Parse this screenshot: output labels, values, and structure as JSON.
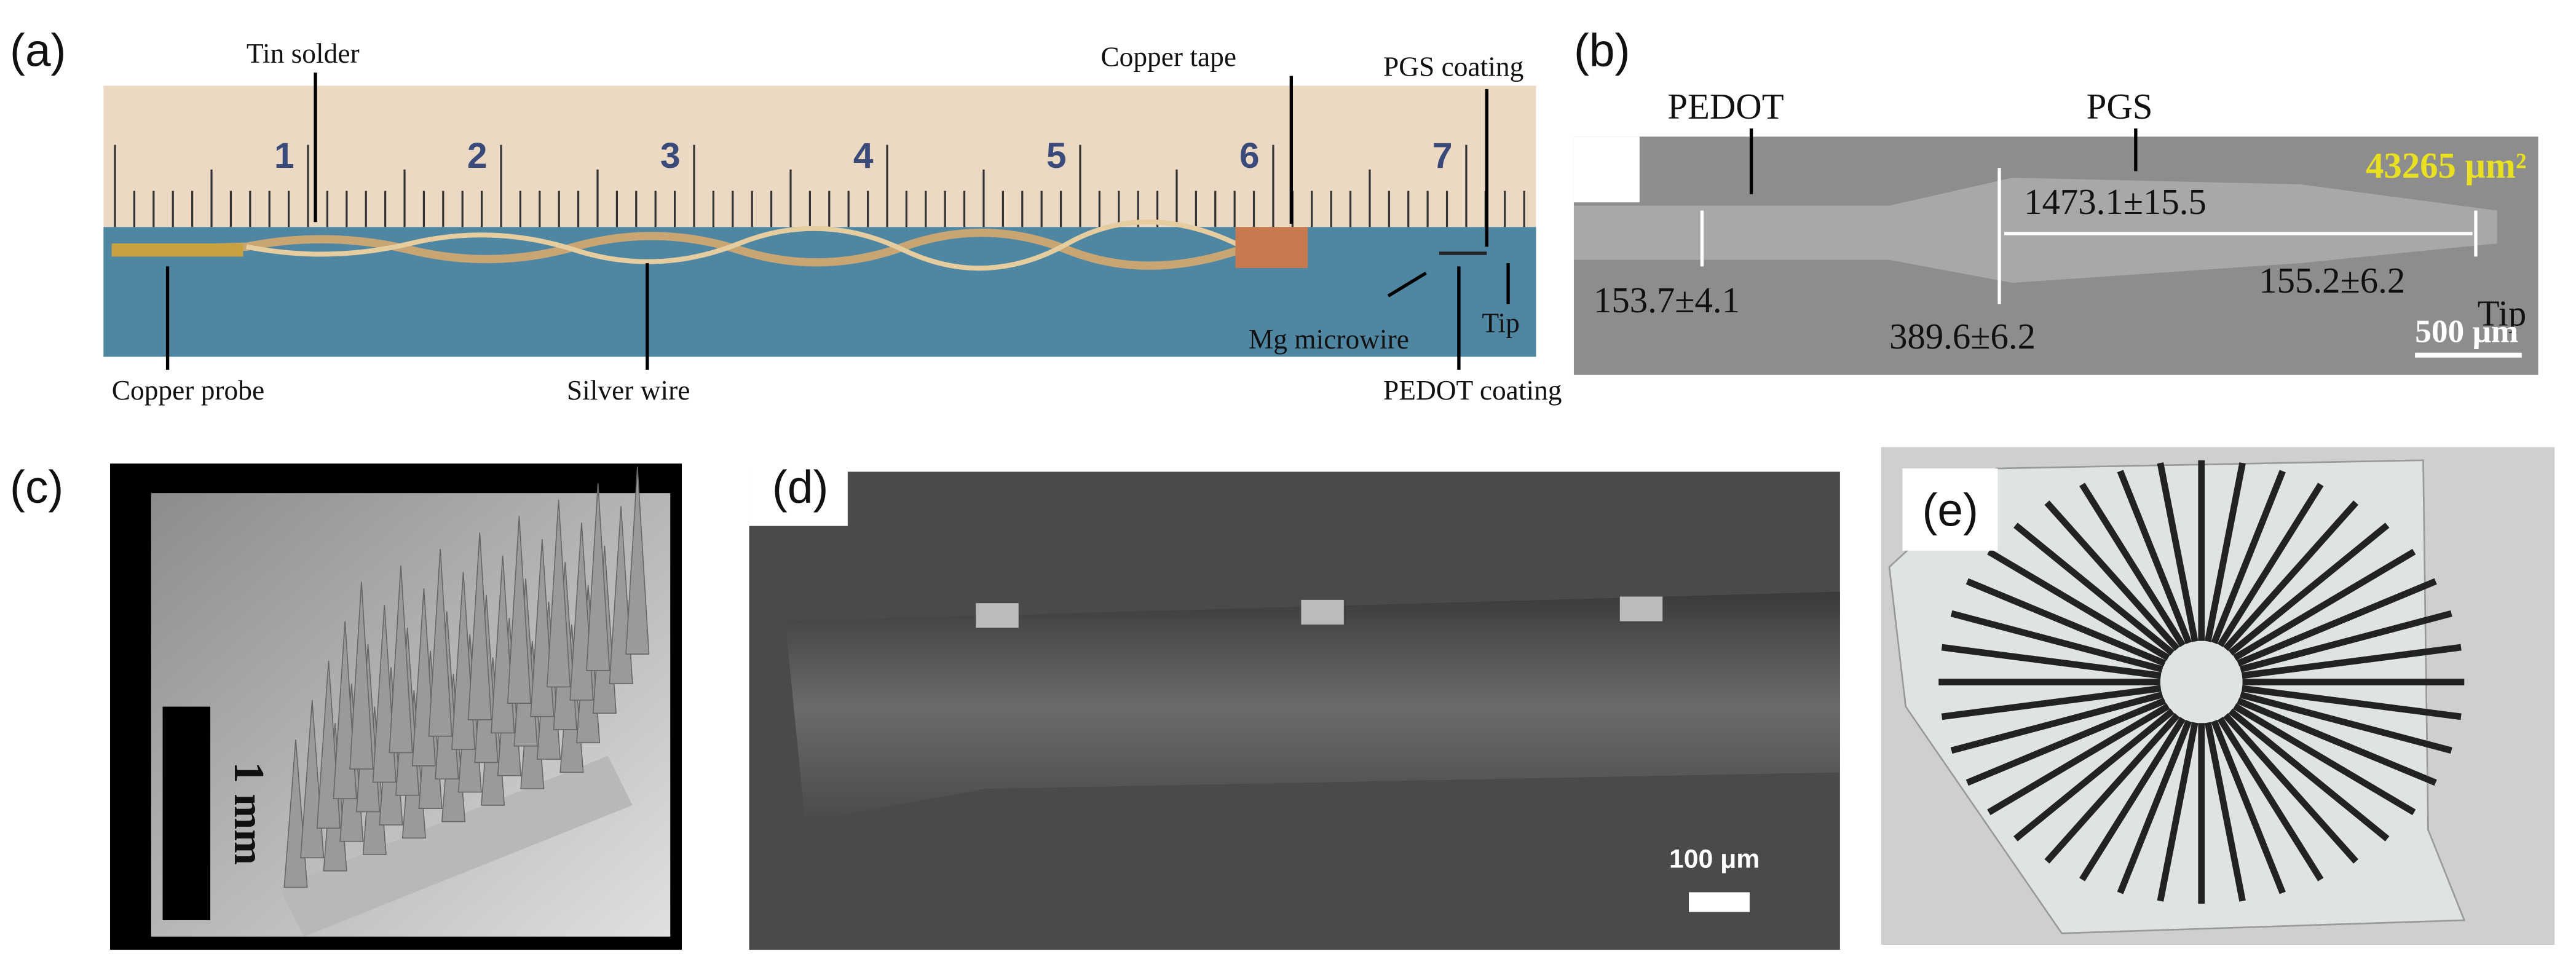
{
  "panels": [
    {
      "label": "(a)",
      "ruler": [
        "1",
        "2",
        "3",
        "4",
        "5",
        "6",
        "7"
      ],
      "annotations": [
        "Tin solder",
        "Copper tape",
        "PGS coating",
        "Copper probe",
        "Silver wire",
        "Mg microwire",
        "Tip",
        "PEDOT coating"
      ]
    },
    {
      "label": "(b)",
      "annotations": [
        "PEDOT",
        "PGS",
        "43265 μm²",
        "1473.1±15.5",
        "153.7±4.1",
        "389.6±6.2",
        "155.2±6.2",
        "Tip",
        "500 μm"
      ]
    },
    {
      "label": "(c)",
      "scale": "1 mm"
    },
    {
      "label": "(d)",
      "scale": "100 μm"
    },
    {
      "label": "(e)"
    }
  ]
}
